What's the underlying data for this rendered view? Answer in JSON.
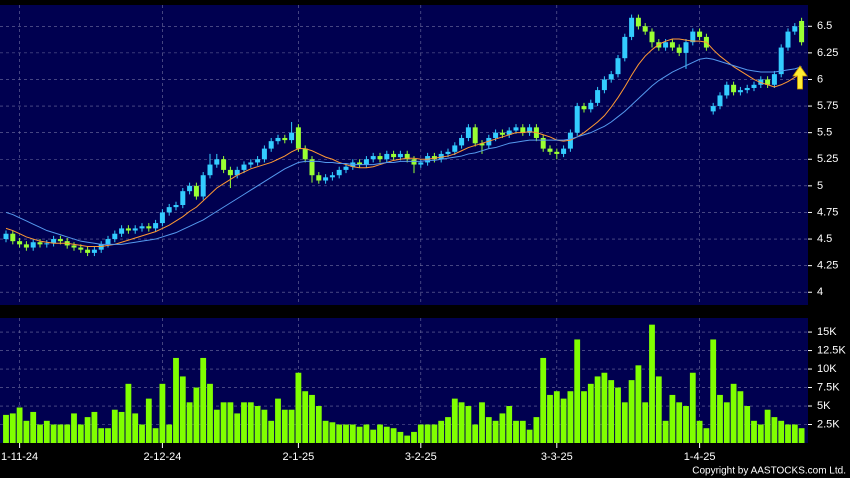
{
  "chart_data": [
    {
      "type": "candlestick",
      "categories": [
        null,
        null,
        "1-11-24",
        null,
        null,
        null,
        null,
        null,
        null,
        null,
        null,
        null,
        null,
        null,
        null,
        null,
        null,
        null,
        null,
        null,
        null,
        null,
        null,
        "2-12-24",
        null,
        null,
        null,
        null,
        null,
        null,
        null,
        null,
        null,
        null,
        null,
        null,
        null,
        null,
        null,
        null,
        null,
        null,
        null,
        "2-1-25",
        null,
        null,
        null,
        null,
        null,
        null,
        null,
        null,
        null,
        null,
        null,
        null,
        null,
        null,
        null,
        null,
        null,
        "3-2-25",
        null,
        null,
        null,
        null,
        null,
        null,
        null,
        null,
        null,
        null,
        null,
        null,
        null,
        null,
        null,
        null,
        null,
        null,
        null,
        "3-3-25",
        null,
        null,
        null,
        null,
        null,
        null,
        null,
        null,
        null,
        null,
        null,
        null,
        null,
        null,
        null,
        null,
        null,
        null,
        null,
        null,
        "1-4-25",
        null,
        null,
        null,
        null,
        null,
        null,
        null,
        null,
        null,
        null,
        null,
        null,
        null,
        null,
        null
      ],
      "ohlc": [
        [
          4.5,
          4.58,
          4.47,
          4.55
        ],
        [
          4.55,
          4.58,
          4.45,
          4.48
        ],
        [
          4.48,
          4.51,
          4.42,
          4.45
        ],
        [
          4.45,
          4.48,
          4.39,
          4.42
        ],
        [
          4.42,
          4.5,
          4.39,
          4.47
        ],
        [
          4.47,
          4.5,
          4.42,
          4.45
        ],
        [
          4.45,
          4.49,
          4.42,
          4.46
        ],
        [
          4.46,
          4.53,
          4.43,
          4.5
        ],
        [
          4.5,
          4.53,
          4.45,
          4.48
        ],
        [
          4.48,
          4.51,
          4.41,
          4.44
        ],
        [
          4.44,
          4.47,
          4.39,
          4.42
        ],
        [
          4.42,
          4.45,
          4.37,
          4.4
        ],
        [
          4.4,
          4.43,
          4.34,
          4.37
        ],
        [
          4.37,
          4.43,
          4.34,
          4.4
        ],
        [
          4.4,
          4.48,
          4.37,
          4.45
        ],
        [
          4.45,
          4.53,
          4.42,
          4.5
        ],
        [
          4.5,
          4.58,
          4.47,
          4.55
        ],
        [
          4.55,
          4.63,
          4.52,
          4.6
        ],
        [
          4.6,
          4.63,
          4.55,
          4.58
        ],
        [
          4.58,
          4.63,
          4.55,
          4.6
        ],
        [
          4.6,
          4.65,
          4.57,
          4.62
        ],
        [
          4.62,
          4.65,
          4.57,
          4.6
        ],
        [
          4.6,
          4.68,
          4.57,
          4.65
        ],
        [
          4.65,
          4.78,
          4.62,
          4.75
        ],
        [
          4.75,
          4.83,
          4.72,
          4.8
        ],
        [
          4.8,
          4.85,
          4.77,
          4.82
        ],
        [
          4.82,
          4.98,
          4.79,
          4.95
        ],
        [
          4.95,
          5.03,
          4.92,
          5.0
        ],
        [
          5.0,
          5.03,
          4.87,
          4.9
        ],
        [
          4.9,
          5.13,
          4.87,
          5.1
        ],
        [
          5.1,
          5.3,
          5.07,
          5.2
        ],
        [
          5.2,
          5.3,
          5.17,
          5.25
        ],
        [
          5.25,
          5.28,
          5.12,
          5.15
        ],
        [
          5.15,
          5.18,
          4.98,
          5.1
        ],
        [
          5.1,
          5.18,
          5.07,
          5.15
        ],
        [
          5.15,
          5.23,
          5.12,
          5.2
        ],
        [
          5.2,
          5.25,
          5.17,
          5.22
        ],
        [
          5.22,
          5.28,
          5.19,
          5.25
        ],
        [
          5.25,
          5.38,
          5.22,
          5.35
        ],
        [
          5.35,
          5.45,
          5.32,
          5.42
        ],
        [
          5.42,
          5.48,
          5.39,
          5.45
        ],
        [
          5.45,
          5.48,
          5.4,
          5.43
        ],
        [
          5.43,
          5.6,
          5.4,
          5.5
        ],
        [
          5.55,
          5.58,
          5.32,
          5.35
        ],
        [
          5.35,
          5.38,
          5.22,
          5.25
        ],
        [
          5.25,
          5.28,
          5.03,
          5.1
        ],
        [
          5.1,
          5.13,
          5.02,
          5.05
        ],
        [
          5.05,
          5.11,
          5.02,
          5.08
        ],
        [
          5.08,
          5.13,
          5.05,
          5.1
        ],
        [
          5.1,
          5.18,
          5.07,
          5.15
        ],
        [
          5.15,
          5.21,
          5.12,
          5.18
        ],
        [
          5.18,
          5.25,
          5.15,
          5.22
        ],
        [
          5.22,
          5.25,
          5.17,
          5.2
        ],
        [
          5.2,
          5.28,
          5.17,
          5.25
        ],
        [
          5.25,
          5.31,
          5.22,
          5.28
        ],
        [
          5.28,
          5.31,
          5.22,
          5.25
        ],
        [
          5.25,
          5.33,
          5.22,
          5.3
        ],
        [
          5.3,
          5.33,
          5.24,
          5.27
        ],
        [
          5.27,
          5.33,
          5.24,
          5.3
        ],
        [
          5.3,
          5.33,
          5.22,
          5.25
        ],
        [
          5.25,
          5.28,
          5.12,
          5.2
        ],
        [
          5.2,
          5.25,
          5.17,
          5.22
        ],
        [
          5.22,
          5.31,
          5.19,
          5.28
        ],
        [
          5.28,
          5.31,
          5.22,
          5.25
        ],
        [
          5.25,
          5.33,
          5.22,
          5.3
        ],
        [
          5.3,
          5.35,
          5.27,
          5.32
        ],
        [
          5.32,
          5.41,
          5.29,
          5.38
        ],
        [
          5.38,
          5.48,
          5.35,
          5.45
        ],
        [
          5.45,
          5.58,
          5.42,
          5.55
        ],
        [
          5.55,
          5.58,
          5.37,
          5.4
        ],
        [
          5.4,
          5.43,
          5.3,
          5.38
        ],
        [
          5.38,
          5.48,
          5.35,
          5.45
        ],
        [
          5.45,
          5.53,
          5.42,
          5.5
        ],
        [
          5.5,
          5.53,
          5.45,
          5.48
        ],
        [
          5.48,
          5.55,
          5.45,
          5.52
        ],
        [
          5.52,
          5.58,
          5.49,
          5.55
        ],
        [
          5.55,
          5.58,
          5.47,
          5.5
        ],
        [
          5.5,
          5.58,
          5.47,
          5.55
        ],
        [
          5.55,
          5.58,
          5.42,
          5.45
        ],
        [
          5.45,
          5.48,
          5.32,
          5.35
        ],
        [
          5.35,
          5.38,
          5.29,
          5.32
        ],
        [
          5.32,
          5.35,
          5.25,
          5.3
        ],
        [
          5.3,
          5.38,
          5.27,
          5.35
        ],
        [
          5.35,
          5.53,
          5.32,
          5.5
        ],
        [
          5.5,
          5.78,
          5.47,
          5.75
        ],
        [
          5.75,
          5.78,
          5.69,
          5.72
        ],
        [
          5.72,
          5.81,
          5.69,
          5.78
        ],
        [
          5.78,
          5.93,
          5.75,
          5.9
        ],
        [
          5.9,
          6.03,
          5.87,
          6.0
        ],
        [
          6.0,
          6.08,
          5.97,
          6.05
        ],
        [
          6.05,
          6.23,
          6.02,
          6.2
        ],
        [
          6.2,
          6.43,
          6.17,
          6.4
        ],
        [
          6.4,
          6.61,
          6.37,
          6.58
        ],
        [
          6.58,
          6.61,
          6.47,
          6.5
        ],
        [
          6.5,
          6.53,
          6.42,
          6.45
        ],
        [
          6.45,
          6.48,
          6.3,
          6.35
        ],
        [
          6.35,
          6.38,
          6.27,
          6.3
        ],
        [
          6.3,
          6.38,
          6.27,
          6.35
        ],
        [
          6.35,
          6.38,
          6.27,
          6.3
        ],
        [
          6.3,
          6.33,
          6.22,
          6.25
        ],
        [
          6.25,
          6.38,
          6.1,
          6.35
        ],
        [
          6.35,
          6.48,
          6.32,
          6.45
        ],
        [
          6.45,
          6.48,
          6.37,
          6.4
        ],
        [
          6.4,
          6.43,
          6.27,
          6.3
        ],
        [
          5.7,
          5.78,
          5.67,
          5.75
        ],
        [
          5.75,
          5.88,
          5.72,
          5.85
        ],
        [
          5.85,
          5.98,
          5.82,
          5.95
        ],
        [
          5.95,
          5.98,
          5.85,
          5.88
        ],
        [
          5.88,
          5.93,
          5.85,
          5.9
        ],
        [
          5.9,
          5.95,
          5.87,
          5.92
        ],
        [
          5.92,
          5.98,
          5.89,
          5.95
        ],
        [
          5.95,
          6.03,
          5.92,
          6.0
        ],
        [
          6.0,
          6.03,
          5.92,
          5.95
        ],
        [
          5.95,
          6.08,
          5.92,
          6.05
        ],
        [
          6.05,
          6.33,
          6.02,
          6.3
        ],
        [
          6.3,
          6.48,
          6.27,
          6.45
        ],
        [
          6.45,
          6.53,
          6.42,
          6.5
        ],
        [
          6.55,
          6.58,
          6.32,
          6.35
        ]
      ],
      "up_color": "#33ccff",
      "down_color": "#99ff33",
      "series": [
        {
          "color": "#ff9933",
          "values": [
            4.6,
            4.58,
            4.55,
            4.52,
            4.5,
            4.48,
            4.47,
            4.46,
            4.46,
            4.46,
            4.45,
            4.44,
            4.43,
            4.43,
            4.43,
            4.44,
            4.45,
            4.47,
            4.49,
            4.51,
            4.53,
            4.55,
            4.57,
            4.6,
            4.63,
            4.67,
            4.71,
            4.76,
            4.8,
            4.86,
            4.92,
            4.98,
            5.02,
            5.06,
            5.1,
            5.13,
            5.16,
            5.18,
            5.2,
            5.22,
            5.25,
            5.28,
            5.32,
            5.35,
            5.35,
            5.33,
            5.3,
            5.27,
            5.25,
            5.22,
            5.2,
            5.18,
            5.17,
            5.17,
            5.18,
            5.2,
            5.22,
            5.24,
            5.25,
            5.26,
            5.26,
            5.25,
            5.25,
            5.26,
            5.27,
            5.28,
            5.3,
            5.33,
            5.36,
            5.38,
            5.4,
            5.42,
            5.44,
            5.46,
            5.48,
            5.5,
            5.5,
            5.51,
            5.5,
            5.48,
            5.46,
            5.43,
            5.42,
            5.43,
            5.46,
            5.5,
            5.55,
            5.6,
            5.66,
            5.74,
            5.83,
            5.93,
            6.04,
            6.14,
            6.22,
            6.28,
            6.33,
            6.36,
            6.38,
            6.38,
            6.37,
            6.36,
            6.36,
            6.35,
            6.28,
            6.22,
            6.17,
            6.12,
            6.08,
            6.04,
            6.0,
            5.97,
            5.95,
            5.93,
            5.95,
            5.98,
            6.02,
            6.06
          ]
        },
        {
          "color": "#5599ee",
          "values": [
            4.75,
            4.73,
            4.7,
            4.67,
            4.64,
            4.61,
            4.58,
            4.56,
            4.54,
            4.52,
            4.5,
            4.48,
            4.47,
            4.46,
            4.45,
            4.45,
            4.45,
            4.45,
            4.46,
            4.47,
            4.48,
            4.49,
            4.5,
            4.52,
            4.54,
            4.56,
            4.59,
            4.62,
            4.65,
            4.68,
            4.72,
            4.76,
            4.8,
            4.84,
            4.88,
            4.92,
            4.96,
            5.0,
            5.04,
            5.08,
            5.12,
            5.16,
            5.19,
            5.22,
            5.23,
            5.23,
            5.23,
            5.22,
            5.22,
            5.21,
            5.21,
            5.2,
            5.2,
            5.2,
            5.2,
            5.21,
            5.22,
            5.22,
            5.23,
            5.23,
            5.23,
            5.23,
            5.24,
            5.24,
            5.25,
            5.26,
            5.27,
            5.28,
            5.3,
            5.31,
            5.33,
            5.35,
            5.36,
            5.38,
            5.4,
            5.41,
            5.42,
            5.43,
            5.43,
            5.43,
            5.43,
            5.43,
            5.43,
            5.44,
            5.46,
            5.48,
            5.5,
            5.53,
            5.56,
            5.6,
            5.65,
            5.7,
            5.76,
            5.82,
            5.88,
            5.94,
            5.99,
            6.03,
            6.07,
            6.1,
            6.13,
            6.16,
            6.19,
            6.2,
            6.19,
            6.17,
            6.15,
            6.13,
            6.11,
            6.09,
            6.08,
            6.07,
            6.07,
            6.07,
            6.08,
            6.09,
            6.1,
            6.12
          ]
        }
      ],
      "ylim": [
        3.88,
        6.7
      ],
      "yticks": [
        4,
        4.25,
        4.5,
        4.75,
        5,
        5.25,
        5.5,
        5.75,
        6,
        6.25,
        6.5
      ],
      "grid": true
    },
    {
      "type": "bar",
      "values": [
        3800,
        4000,
        4800,
        3000,
        4200,
        2500,
        3000,
        2500,
        2500,
        2500,
        4000,
        2500,
        3500,
        4200,
        2000,
        2000,
        4500,
        4200,
        8000,
        4000,
        2500,
        6000,
        2000,
        8000,
        2500,
        11500,
        9000,
        5500,
        7500,
        11500,
        8000,
        4500,
        5500,
        5500,
        4000,
        5500,
        5500,
        5000,
        4500,
        3000,
        6000,
        4500,
        4500,
        9500,
        7000,
        6500,
        5000,
        3000,
        2800,
        2500,
        2500,
        2500,
        2200,
        2500,
        1800,
        2500,
        2200,
        2000,
        1500,
        1000,
        1500,
        2500,
        2500,
        2500,
        3000,
        3500,
        6000,
        5500,
        5000,
        2500,
        5500,
        3500,
        3000,
        4000,
        5000,
        3000,
        3000,
        1800,
        3500,
        11500,
        6500,
        7000,
        6000,
        7000,
        14000,
        7000,
        8000,
        9000,
        9500,
        8500,
        7500,
        5500,
        8500,
        10500,
        5500,
        16000,
        9000,
        3000,
        6500,
        5500,
        5000,
        9500,
        3000,
        2000,
        14000,
        6500,
        5500,
        8000,
        7000,
        5000,
        3000,
        2500,
        4500,
        3500,
        3000,
        2500,
        2500,
        2000
      ],
      "color": "#80ff00",
      "ylim": [
        0,
        16900
      ],
      "yticks": [
        {
          "value": 2500,
          "label": "2.5K"
        },
        {
          "value": 5000,
          "label": "5K"
        },
        {
          "value": 7500,
          "label": "7.5K"
        },
        {
          "value": 10000,
          "label": "10K"
        },
        {
          "value": 12500,
          "label": "12.5K"
        },
        {
          "value": 15000,
          "label": "15K"
        }
      ],
      "grid": true
    }
  ],
  "copyright": "Copyright by AASTOCKS.com Ltd."
}
